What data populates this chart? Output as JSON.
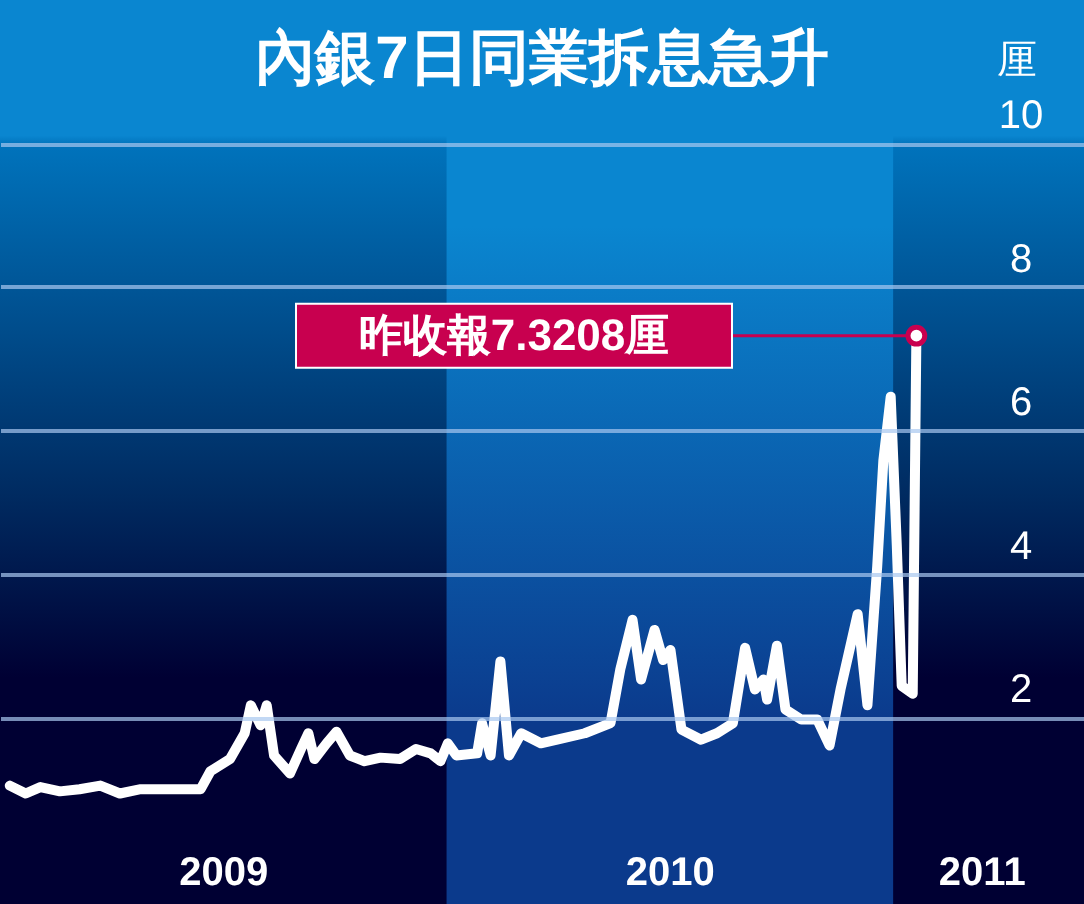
{
  "chart_data": {
    "type": "line",
    "title": "內銀7日同業拆息急升",
    "ylabel": "厘",
    "xlim": [
      "2009-01-01",
      "2011-06-06"
    ],
    "ylim": [
      -0.6,
      12
    ],
    "xticks": [
      {
        "value": "2009-07-02",
        "label": "2009"
      },
      {
        "value": "2010-07-02",
        "label": "2010"
      },
      {
        "value": "2011-03-14",
        "label": "2011"
      }
    ],
    "yticks": [
      2,
      4,
      6,
      8,
      10
    ],
    "grid": "y",
    "marker": "none",
    "line_style": "solid",
    "bands": [
      {
        "axis": "x",
        "from": "2010-01-01",
        "to": "2011-01-01",
        "color": "#0b3a8c"
      }
    ],
    "annotations": [
      "昨收報7.3208厘"
    ],
    "series": [
      {
        "color": "#ffffff",
        "x": [
          "2009-01-09",
          "2009-01-22",
          "2009-02-03",
          "2009-02-19",
          "2009-03-07",
          "2009-03-24",
          "2009-04-09",
          "2009-04-26",
          "2009-05-20",
          "2009-06-14",
          "2009-06-22",
          "2009-07-08",
          "2009-07-20",
          "2009-07-25",
          "2009-08-02",
          "2009-08-07",
          "2009-08-13",
          "2009-08-26",
          "2009-09-04",
          "2009-09-10",
          "2009-09-15",
          "2009-09-25",
          "2009-10-03",
          "2009-10-14",
          "2009-10-26",
          "2009-11-08",
          "2009-11-24",
          "2009-12-07",
          "2009-12-19",
          "2009-12-27",
          "2010-01-02",
          "2010-01-09",
          "2010-01-26",
          "2010-01-30",
          "2010-02-06",
          "2010-02-14",
          "2010-02-21",
          "2010-03-03",
          "2010-03-19",
          "2010-04-04",
          "2010-04-24",
          "2010-05-15",
          "2010-05-23",
          "2010-06-02",
          "2010-06-09",
          "2010-06-20",
          "2010-06-27",
          "2010-07-03",
          "2010-07-12",
          "2010-07-28",
          "2010-08-10",
          "2010-08-23",
          "2010-09-02",
          "2010-09-10",
          "2010-09-17",
          "2010-09-20",
          "2010-09-28",
          "2010-10-05",
          "2010-10-18",
          "2010-10-31",
          "2010-11-10",
          "2010-11-19",
          "2010-12-03",
          "2010-12-11",
          "2010-12-19",
          "2010-12-24",
          "2010-12-30",
          "2011-01-04",
          "2011-01-08",
          "2011-01-17",
          "2011-01-20"
        ],
        "values": [
          1.05,
          0.94,
          1.03,
          0.97,
          1.0,
          1.05,
          0.94,
          1.0,
          1.0,
          1.0,
          1.25,
          1.42,
          1.78,
          2.17,
          1.89,
          2.17,
          1.47,
          1.22,
          1.56,
          1.78,
          1.42,
          1.64,
          1.8,
          1.47,
          1.39,
          1.44,
          1.42,
          1.56,
          1.5,
          1.39,
          1.64,
          1.47,
          1.5,
          1.92,
          1.47,
          2.78,
          1.47,
          1.78,
          1.64,
          1.7,
          1.78,
          1.92,
          2.67,
          3.36,
          2.53,
          3.22,
          2.8,
          2.94,
          1.83,
          1.69,
          1.78,
          1.92,
          2.97,
          2.39,
          2.53,
          2.25,
          3.0,
          2.11,
          1.97,
          1.97,
          1.61,
          2.39,
          3.44,
          2.17,
          4.11,
          5.58,
          6.47,
          4.39,
          2.44,
          2.33,
          7.3208
        ]
      }
    ]
  }
}
